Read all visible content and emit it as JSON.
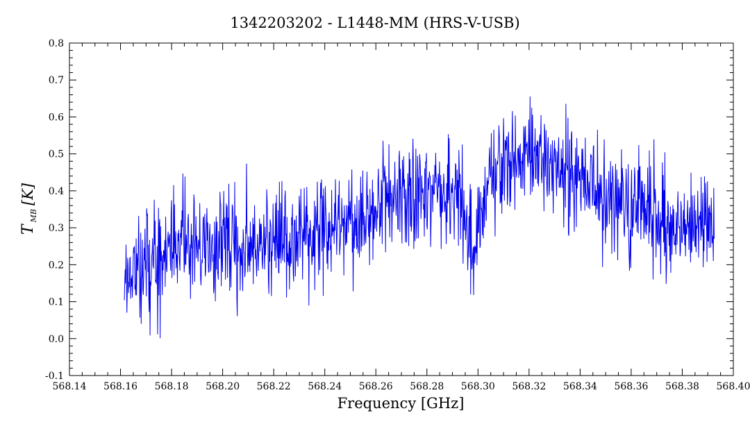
{
  "chart_data": {
    "type": "line",
    "title": "1342203202 - L1448-MM (HRS-V-USB)",
    "xlabel": "Frequency [GHz]",
    "ylabel": {
      "symbol": "T",
      "subscript": "MB",
      "unit": "[K]"
    },
    "xlim": [
      568.14,
      568.4
    ],
    "ylim": [
      -0.1,
      0.8
    ],
    "x_ticks": [
      "568.14",
      "568.16",
      "568.18",
      "568.20",
      "568.22",
      "568.24",
      "568.26",
      "568.28",
      "568.30",
      "568.32",
      "568.34",
      "568.36",
      "568.38",
      "568.40"
    ],
    "y_ticks": [
      "-0.1",
      "0.0",
      "0.1",
      "0.2",
      "0.3",
      "0.4",
      "0.5",
      "0.6",
      "0.7",
      "0.8"
    ],
    "grid": false,
    "series": [
      {
        "color": "#0000ee",
        "x_start": 568.1615,
        "x_end": 568.3925,
        "baseline": {
          "x": [
            568.1615,
            568.17,
            568.18,
            568.2,
            568.22,
            568.24,
            568.25,
            568.26,
            568.27,
            568.28,
            568.29,
            568.295,
            568.298,
            568.3,
            568.305,
            568.31,
            568.32,
            568.33,
            568.34,
            568.35,
            568.36,
            568.37,
            568.38,
            568.39,
            568.3925
          ],
          "y": [
            0.17,
            0.2,
            0.25,
            0.25,
            0.26,
            0.28,
            0.31,
            0.34,
            0.38,
            0.39,
            0.4,
            0.34,
            0.18,
            0.3,
            0.45,
            0.48,
            0.5,
            0.46,
            0.42,
            0.38,
            0.35,
            0.32,
            0.3,
            0.3,
            0.3
          ]
        },
        "noise_rms": 0.07
      }
    ]
  }
}
